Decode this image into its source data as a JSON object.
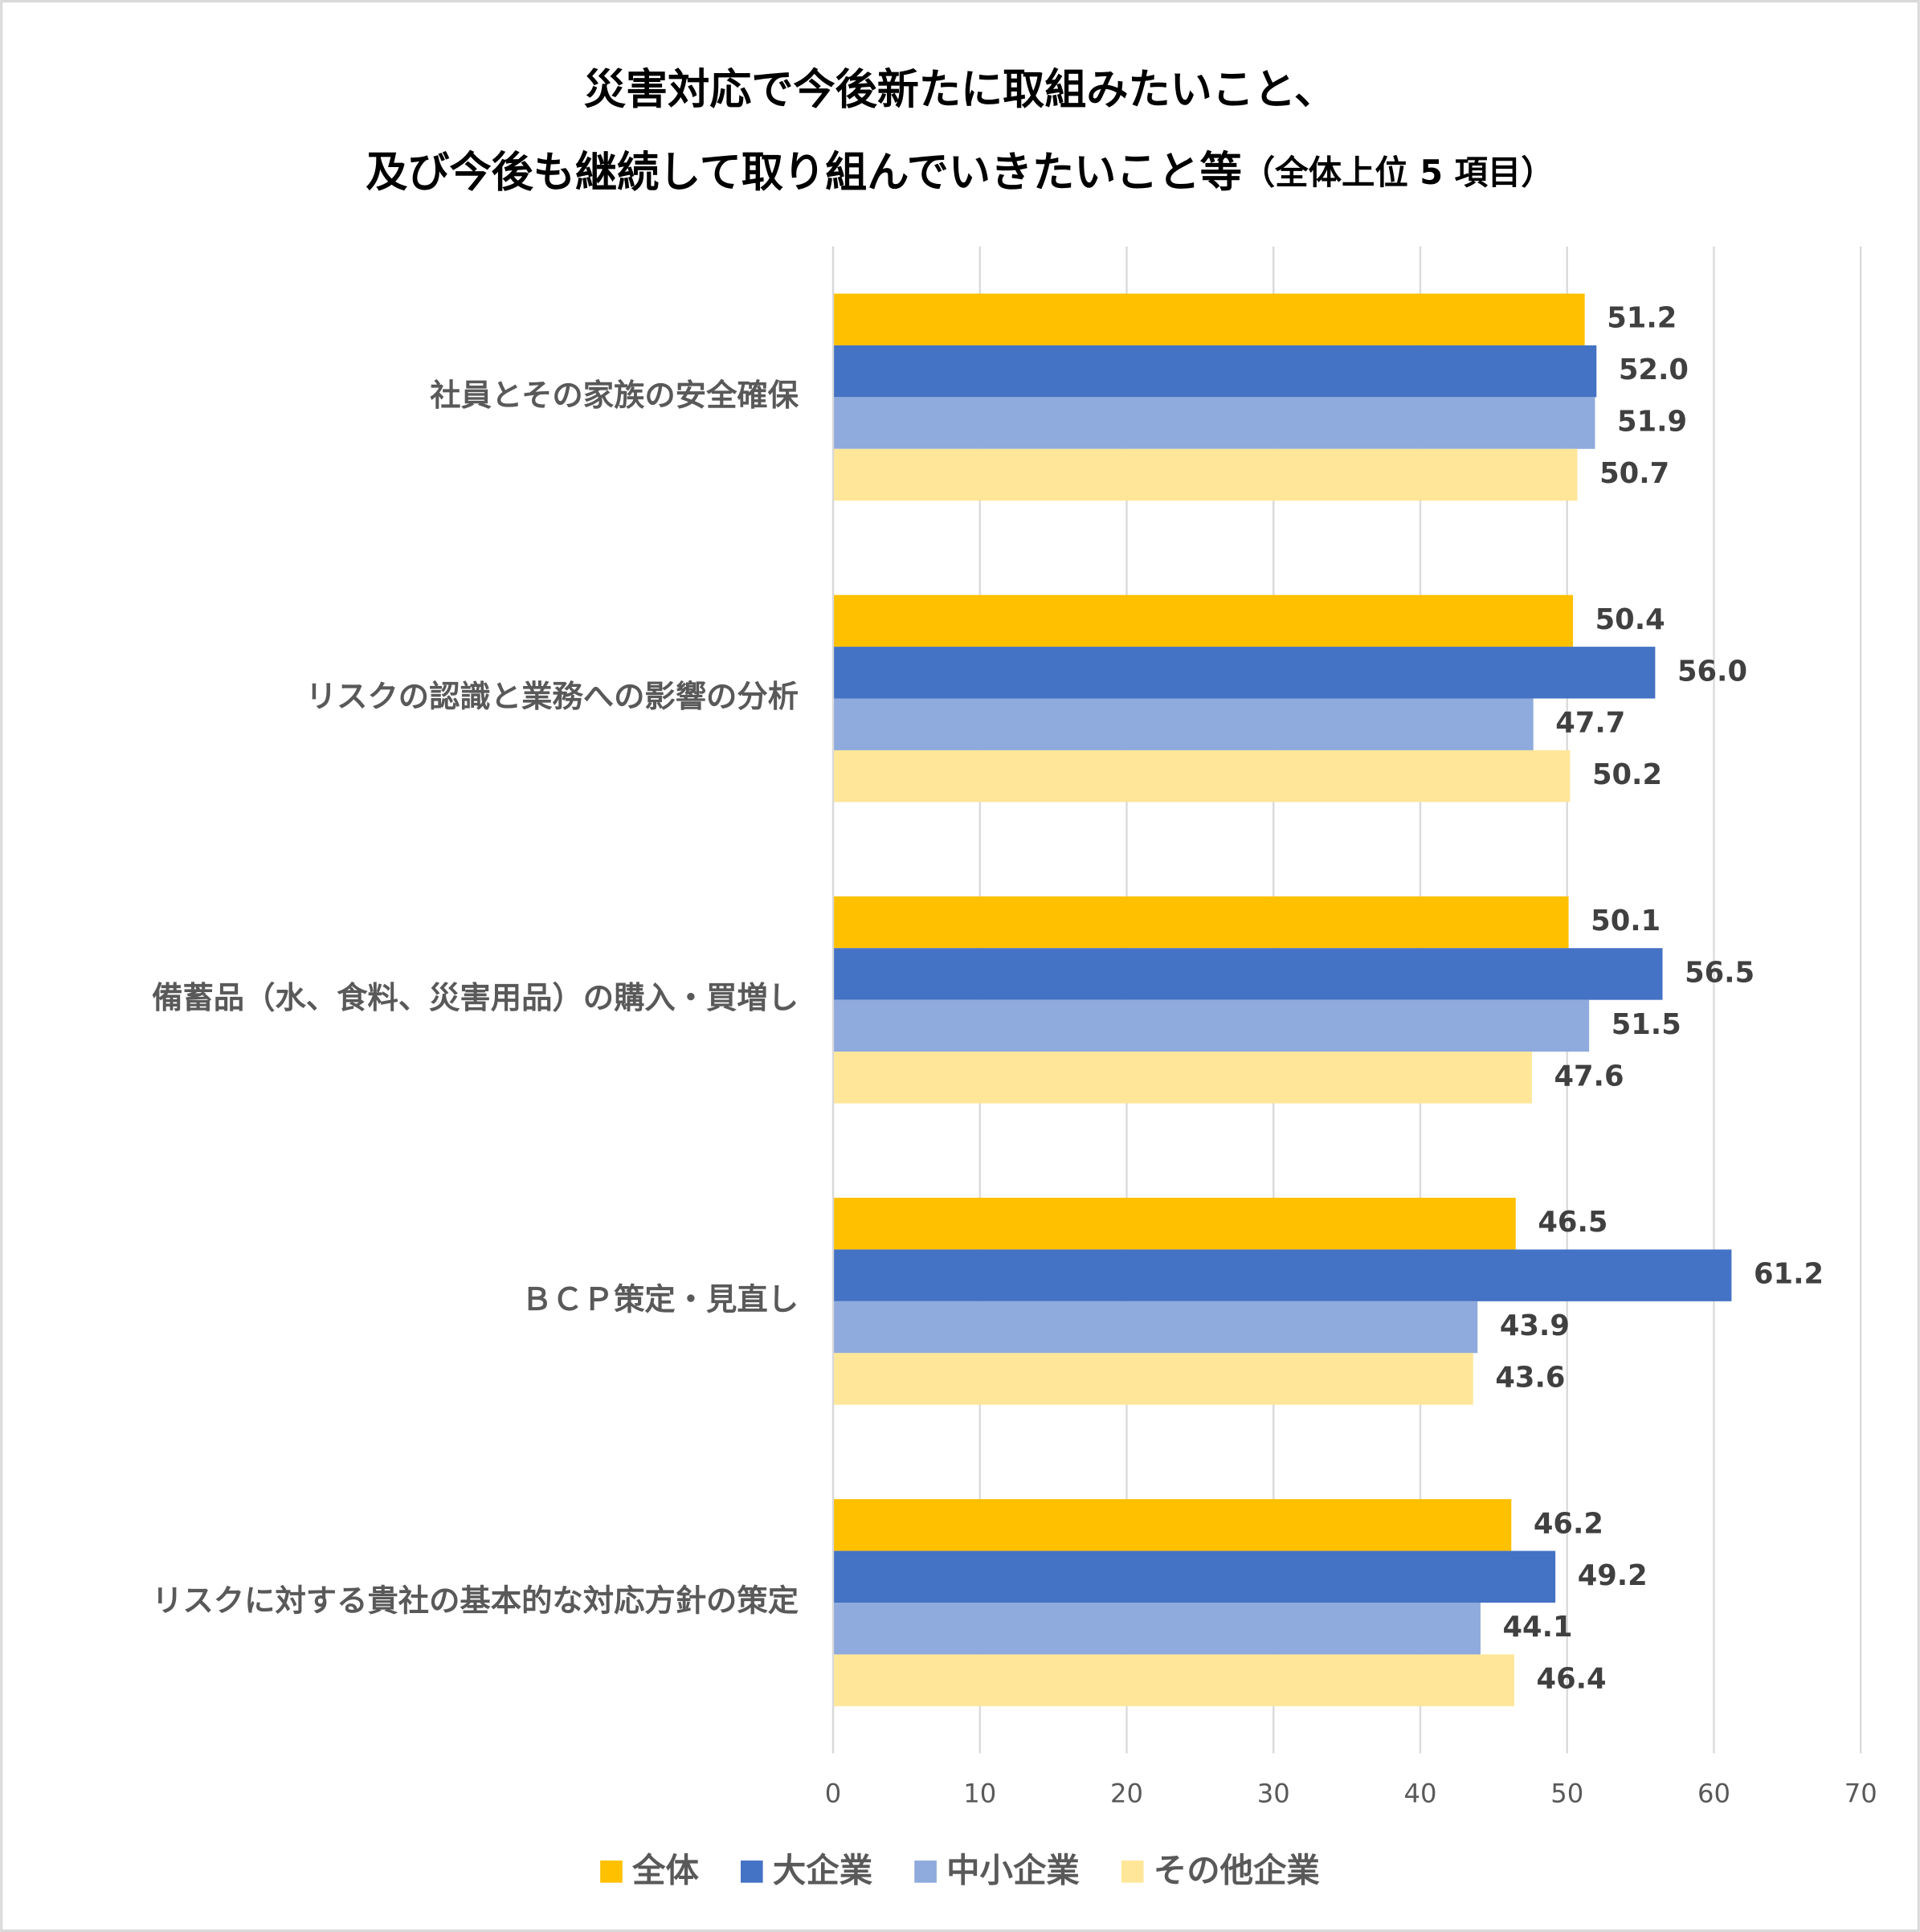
{
  "chart_data": {
    "type": "hbar",
    "title": [
      "災害対応で今後新たに取組みたいこと、",
      "及び今後も継続して取り組んでいきたいこと等"
    ],
    "title_note": "（全体上位 5 項目）",
    "categories": [
      "社員とその家族の安全確保",
      "リスクの認識と業務への影響の分析",
      "備蓄品（水、食料、災害用品）の購入・買増し",
      "ＢＣＰ策定・見直し",
      "リスクに対する貴社の基本的な対応方針の策定"
    ],
    "series": [
      {
        "name": "全体",
        "color": "#FFC000",
        "values": [
          51.2,
          50.4,
          50.1,
          46.5,
          46.2
        ],
        "value_labels": [
          "51.2",
          "50.4",
          "50.1",
          "46.5",
          "46.2"
        ]
      },
      {
        "name": "大企業",
        "color": "#4472C4",
        "values": [
          52.0,
          56.0,
          56.5,
          61.2,
          49.2
        ],
        "value_labels": [
          "52.0",
          "56.0",
          "56.5",
          "61.2",
          "49.2"
        ]
      },
      {
        "name": "中小企業",
        "color": "#8FAADC",
        "values": [
          51.9,
          47.7,
          51.5,
          43.9,
          44.1
        ],
        "value_labels": [
          "51.9",
          "47.7",
          "51.5",
          "43.9",
          "44.1"
        ]
      },
      {
        "name": "その他企業",
        "color": "#FFE699",
        "values": [
          50.7,
          50.2,
          47.6,
          43.6,
          46.4
        ],
        "value_labels": [
          "50.7",
          "50.2",
          "47.6",
          "43.6",
          "46.4"
        ]
      }
    ],
    "xlim": [
      0,
      70
    ],
    "xticks": [
      0,
      10,
      20,
      30,
      40,
      50,
      60,
      70
    ],
    "grid": true,
    "legend": "bottom"
  }
}
